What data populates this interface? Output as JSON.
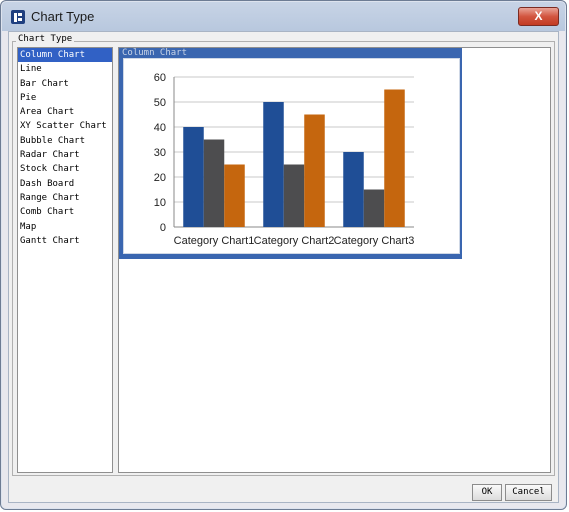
{
  "window": {
    "title": "Chart Type",
    "close_label": "X"
  },
  "panel": {
    "legend": "Chart Type"
  },
  "chart_types": [
    "Column Chart",
    "Line",
    "Bar Chart",
    "Pie",
    "Area Chart",
    "XY Scatter Chart",
    "Bubble Chart",
    "Radar Chart",
    "Stock Chart",
    "Dash Board",
    "Range Chart",
    "Comb Chart",
    "Map",
    "Gantt Chart"
  ],
  "selected_type": "Column Chart",
  "preview": {
    "legend": "Column Chart"
  },
  "footer": {
    "ok": "OK",
    "cancel": "Cancel"
  },
  "colors": {
    "series1": "#1f4e96",
    "series2": "#4d4d4f",
    "series3": "#c5660e",
    "frame": "#3a66b0"
  },
  "chart_data": {
    "type": "bar",
    "categories": [
      "Category Chart1",
      "Category Chart2",
      "Category Chart3"
    ],
    "series": [
      {
        "values": [
          40,
          50,
          30
        ]
      },
      {
        "values": [
          35,
          25,
          15
        ]
      },
      {
        "values": [
          25,
          45,
          55
        ]
      }
    ],
    "yticks": [
      0,
      10,
      20,
      30,
      40,
      50,
      60
    ],
    "ylim": [
      0,
      60
    ],
    "grid": true
  }
}
